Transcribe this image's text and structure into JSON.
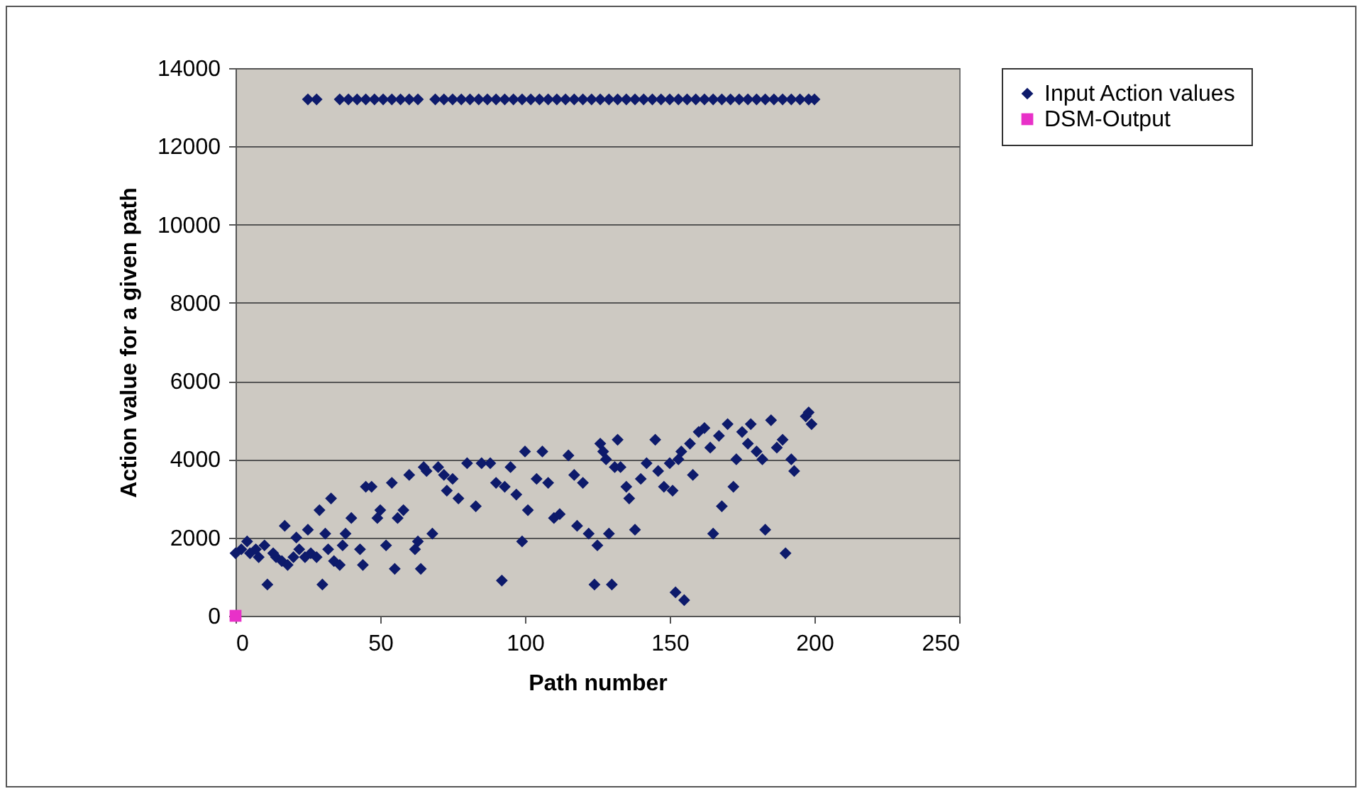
{
  "chart_data": {
    "type": "scatter",
    "xlabel": "Path number",
    "ylabel": "Action value for a given path",
    "xlim": [
      0,
      250
    ],
    "xticks": [
      0,
      50,
      100,
      150,
      200,
      250
    ],
    "ylim": [
      0,
      14000
    ],
    "yticks": [
      0,
      2000,
      4000,
      6000,
      8000,
      10000,
      12000,
      14000
    ],
    "grid": "y",
    "legend": "right",
    "series": [
      {
        "name": "Input Action values",
        "color": "#0d1a6b",
        "marker": "diamond",
        "x": [
          25,
          28,
          36,
          39,
          42,
          45,
          48,
          51,
          54,
          57,
          60,
          63,
          69,
          72,
          75,
          78,
          81,
          84,
          87,
          90,
          93,
          96,
          99,
          102,
          105,
          108,
          111,
          114,
          117,
          120,
          123,
          126,
          129,
          132,
          135,
          138,
          141,
          144,
          147,
          150,
          153,
          156,
          159,
          162,
          165,
          168,
          171,
          174,
          177,
          180,
          183,
          186,
          189,
          192,
          195,
          198,
          200,
          0,
          2,
          4,
          5,
          7,
          8,
          10,
          11,
          13,
          14,
          16,
          17,
          18,
          20,
          21,
          22,
          24,
          25,
          26,
          28,
          29,
          30,
          31,
          32,
          33,
          34,
          36,
          37,
          38,
          40,
          43,
          44,
          45,
          47,
          49,
          50,
          52,
          54,
          55,
          56,
          58,
          60,
          62,
          63,
          64,
          65,
          66,
          68,
          70,
          72,
          73,
          75,
          77,
          80,
          83,
          85,
          88,
          90,
          92,
          93,
          95,
          97,
          99,
          100,
          101,
          104,
          106,
          108,
          110,
          112,
          115,
          117,
          118,
          120,
          122,
          124,
          125,
          126,
          127,
          128,
          129,
          130,
          131,
          132,
          133,
          135,
          136,
          138,
          140,
          142,
          145,
          146,
          148,
          150,
          151,
          152,
          153,
          154,
          155,
          157,
          158,
          160,
          162,
          164,
          165,
          167,
          168,
          170,
          172,
          173,
          175,
          177,
          178,
          180,
          182,
          183,
          185,
          187,
          189,
          190,
          192,
          193,
          197,
          198,
          199
        ],
        "values": [
          13200,
          13200,
          13200,
          13200,
          13200,
          13200,
          13200,
          13200,
          13200,
          13200,
          13200,
          13200,
          13200,
          13200,
          13200,
          13200,
          13200,
          13200,
          13200,
          13200,
          13200,
          13200,
          13200,
          13200,
          13200,
          13200,
          13200,
          13200,
          13200,
          13200,
          13200,
          13200,
          13200,
          13200,
          13200,
          13200,
          13200,
          13200,
          13200,
          13200,
          13200,
          13200,
          13200,
          13200,
          13200,
          13200,
          13200,
          13200,
          13200,
          13200,
          13200,
          13200,
          13200,
          13200,
          13200,
          13200,
          13200,
          1600,
          1700,
          1900,
          1600,
          1700,
          1500,
          1800,
          800,
          1600,
          1500,
          1400,
          2300,
          1300,
          1500,
          2000,
          1700,
          1500,
          2200,
          1600,
          1500,
          2700,
          800,
          2100,
          1700,
          3000,
          1400,
          1300,
          1800,
          2100,
          2500,
          1700,
          1300,
          3300,
          3300,
          2500,
          2700,
          1800,
          3400,
          1200,
          2500,
          2700,
          3600,
          1700,
          1900,
          1200,
          3800,
          3700,
          2100,
          3800,
          3600,
          3200,
          3500,
          3000,
          3900,
          2800,
          3900,
          3900,
          3400,
          900,
          3300,
          3800,
          3100,
          1900,
          4200,
          2700,
          3500,
          4200,
          3400,
          2500,
          2600,
          4100,
          3600,
          2300,
          3400,
          2100,
          800,
          1800,
          4400,
          4200,
          4000,
          2100,
          800,
          3800,
          4500,
          3800,
          3300,
          3000,
          2200,
          3500,
          3900,
          4500,
          3700,
          3300,
          3900,
          3200,
          600,
          4000,
          4200,
          400,
          4400,
          3600,
          4700,
          4800,
          4300,
          2100,
          4600,
          2800,
          4900,
          3300,
          4000,
          4700,
          4400,
          4900,
          4200,
          4000,
          2200,
          5000,
          4300,
          4500,
          1600,
          4000,
          3700,
          5100,
          5200,
          4900
        ]
      },
      {
        "name": "DSM-Output",
        "color": "#e831c8",
        "marker": "square",
        "x": [
          0
        ],
        "values": [
          0
        ]
      }
    ]
  }
}
